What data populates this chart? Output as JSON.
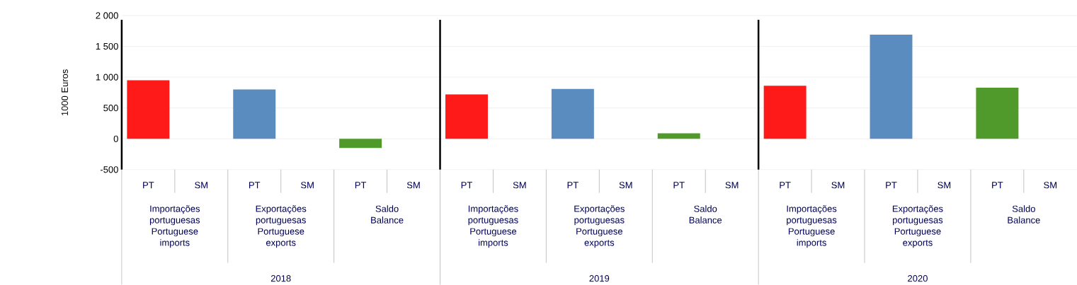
{
  "chart_data": {
    "type": "bar",
    "ylabel": "1000 Euros",
    "categories": [
      "PT",
      "SM",
      "PT",
      "SM",
      "PT",
      "SM",
      "PT",
      "SM",
      "PT",
      "SM",
      "PT",
      "SM",
      "PT",
      "SM",
      "PT",
      "SM",
      "PT",
      "SM"
    ],
    "values": [
      950,
      0,
      800,
      0,
      -150,
      0,
      720,
      0,
      810,
      0,
      90,
      0,
      860,
      0,
      1690,
      0,
      830,
      0
    ],
    "colors": [
      "#ff1a1a",
      "#ff1a1a",
      "#5b8cc0",
      "#5b8cc0",
      "#4f9a2a",
      "#4f9a2a",
      "#ff1a1a",
      "#ff1a1a",
      "#5b8cc0",
      "#5b8cc0",
      "#4f9a2a",
      "#4f9a2a",
      "#ff1a1a",
      "#ff1a1a",
      "#5b8cc0",
      "#5b8cc0",
      "#4f9a2a",
      "#4f9a2a"
    ],
    "ylim": [
      -500,
      2000
    ],
    "yticks": [
      {
        "value": -500,
        "label": "-500"
      },
      0,
      500,
      {
        "value": 1000,
        "label": "1 000"
      },
      {
        "value": 1500,
        "label": "1 500"
      },
      {
        "value": 2000,
        "label": "2 000"
      }
    ],
    "grid": "y",
    "annotations": [
      "Importações portuguesas Portuguese imports",
      "Exportações portuguesas Portuguese exports",
      "Saldo Balance",
      "Importações portuguesas Portuguese imports",
      "Exportações portuguesas Portuguese exports",
      "Saldo Balance",
      "Importações portuguesas Portuguese imports",
      "Exportações portuguesas Portuguese exports",
      "Saldo Balance",
      "2018",
      "2019",
      "2020"
    ]
  }
}
